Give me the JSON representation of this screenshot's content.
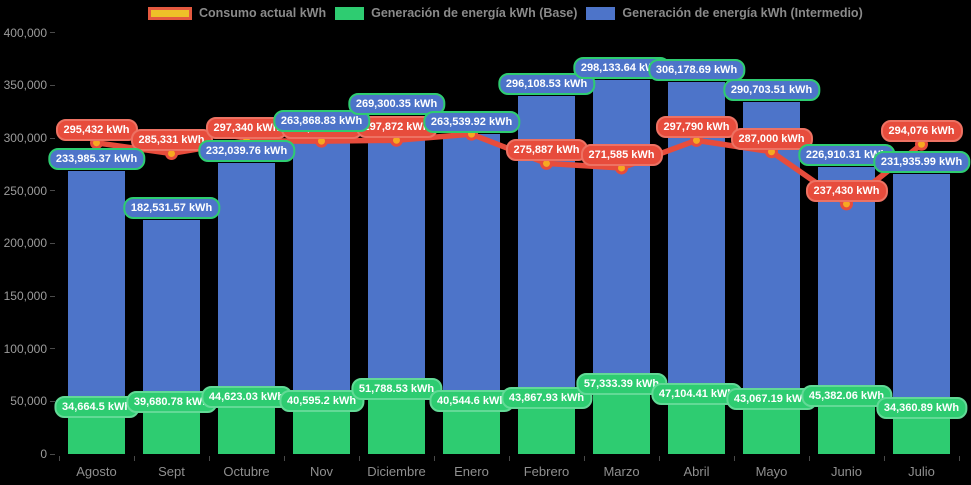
{
  "legend": {
    "items": [
      {
        "label": "Consumo actual kWh",
        "series_type": "line"
      },
      {
        "label": "Generación de energía kWh (Base)",
        "series_type": "bar"
      },
      {
        "label": "Generación de energía kWh (Intermedio)",
        "series_type": "bar"
      }
    ]
  },
  "chart_data": {
    "type": "bar",
    "subtype": "stacked-bar-with-line-overlay",
    "title": "",
    "xlabel": "",
    "ylabel": "",
    "categories": [
      "Agosto",
      "Sept",
      "Octubre",
      "Nov",
      "Diciembre",
      "Enero",
      "Febrero",
      "Marzo",
      "Abril",
      "Mayo",
      "Junio",
      "Julio"
    ],
    "series": [
      {
        "name": "Generación de energía kWh (Base)",
        "type": "bar",
        "stack": "generacion",
        "color": "#2ecc71",
        "values": [
          34664.5,
          39680.78,
          44623.03,
          40595.2,
          51788.53,
          40544.6,
          43867.93,
          57333.39,
          47104.41,
          43067.19,
          45382.06,
          34360.89
        ],
        "labels": [
          "34,664.5 kWh",
          "39,680.78 kWh",
          "44,623.03 kWh",
          "40,595.2 kWh",
          "51,788.53 kWh",
          "40,544.6 kWh",
          "43,867.93 kWh",
          "57,333.39 kWh",
          "47,104.41 kWh",
          "43,067.19 kWh",
          "45,382.06 kWh",
          "34,360.89 kWh"
        ]
      },
      {
        "name": "Generación de energía kWh (Intermedio)",
        "type": "bar",
        "stack": "generacion",
        "color": "#4d74c9",
        "values": [
          233985.37,
          182531.57,
          232039.76,
          263868.83,
          269300.35,
          263539.92,
          296108.53,
          298133.64,
          306178.69,
          290703.51,
          226910.31,
          231935.99
        ],
        "labels": [
          "233,985.37 kWh",
          "182,531.57 kWh",
          "232,039.76 kWh",
          "263,868.83 kWh",
          "269,300.35 kWh",
          "263,539.92 kWh",
          "296,108.53 kWh",
          "298,133.64 kWh",
          "306,178.69 kWh",
          "290,703.51 kWh",
          "226,910.31 kWh",
          "231,935.99 kWh"
        ]
      },
      {
        "name": "Consumo actual kWh",
        "type": "line",
        "color": "#e74c3c",
        "point_fill": "#f6a821",
        "values": [
          295432,
          285331,
          297340,
          297072,
          297872,
          303700,
          275887,
          271585,
          297790,
          287000,
          237430,
          294076
        ],
        "labels": [
          "295,432 kWh",
          "285,331 kWh",
          "297,340 kWh",
          "297,072 kWh",
          "297,872 kWh",
          null,
          "275,887 kWh",
          "271,585 kWh",
          "297,790 kWh",
          "287,000 kWh",
          "237,430 kWh",
          "294,076 kWh"
        ],
        "note": "Enero label is hidden behind the generation label; Enero value estimated from line position"
      }
    ],
    "ylim": [
      0,
      400000
    ],
    "ytick_step": 50000,
    "ytick_labels": [
      "0",
      "50,000",
      "100,000",
      "150,000",
      "200,000",
      "250,000",
      "300,000",
      "350,000",
      "400,000"
    ],
    "grid": false,
    "legend_position": "top"
  },
  "colors": {
    "background": "#000000",
    "bar_blue": "#4d74c9",
    "bar_green": "#2ecc71",
    "line_red": "#e74c3c",
    "point_fill": "#f6a821",
    "legend_swatch_yellow": "#eec028",
    "legend_swatch_red_border": "#e4593f",
    "axis_text": "#9c9c9c",
    "label_text": "#ffffff"
  }
}
